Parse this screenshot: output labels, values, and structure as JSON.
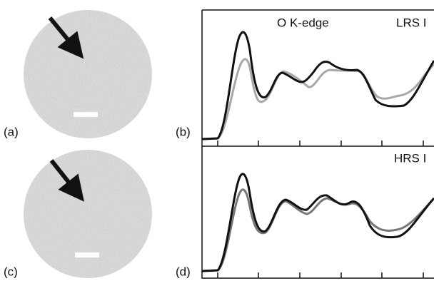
{
  "panels": [
    {
      "label": "(a)"
    },
    {
      "label": "(b)",
      "title": "O K-edge",
      "state": "LRS I"
    },
    {
      "label": "(c)"
    },
    {
      "label": "(d)",
      "state": "HRS I"
    }
  ]
}
